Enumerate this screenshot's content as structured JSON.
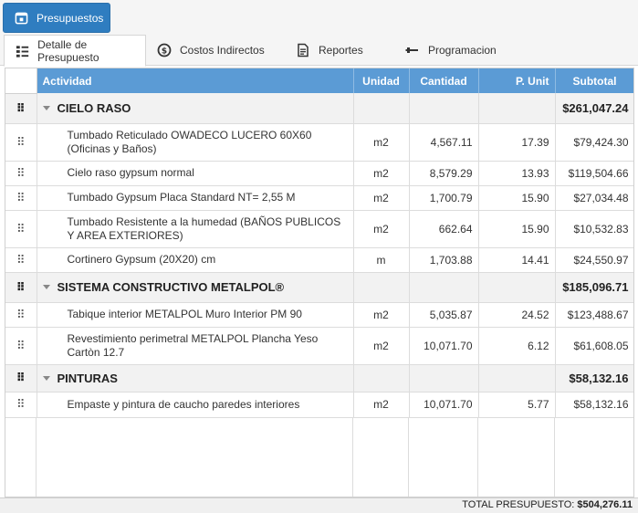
{
  "toolbar": {
    "primary_button_label": "Presupuestos",
    "primary_button_icon": "calendar-icon"
  },
  "tabs": [
    {
      "label": "Detalle de Presupuesto",
      "icon": "list-icon",
      "active": true
    },
    {
      "label": "Costos Indirectos",
      "icon": "dollar-circle-icon",
      "active": false
    },
    {
      "label": "Reportes",
      "icon": "document-icon",
      "active": false
    },
    {
      "label": "Programacion",
      "icon": "pin-icon",
      "active": false
    }
  ],
  "table": {
    "headers": {
      "actividad": "Actividad",
      "unidad": "Unidad",
      "cantidad": "Cantidad",
      "p_unit": "P. Unit",
      "subtotal": "Subtotal"
    },
    "groups": [
      {
        "name": "CIELO RASO",
        "subtotal": "$261,047.24",
        "rows": [
          {
            "actividad": "Tumbado Reticulado OWADECO LUCERO 60X60 (Oficinas y Baños)",
            "unidad": "m2",
            "cantidad": "4,567.11",
            "p_unit": "17.39",
            "subtotal": "$79,424.30"
          },
          {
            "actividad": "Cielo raso gypsum normal",
            "unidad": "m2",
            "cantidad": "8,579.29",
            "p_unit": "13.93",
            "subtotal": "$119,504.66"
          },
          {
            "actividad": "Tumbado Gypsum Placa Standard NT= 2,55 M",
            "unidad": "m2",
            "cantidad": "1,700.79",
            "p_unit": "15.90",
            "subtotal": "$27,034.48"
          },
          {
            "actividad": "Tumbado Resistente a la humedad (BAÑOS PUBLICOS Y AREA EXTERIORES)",
            "unidad": "m2",
            "cantidad": "662.64",
            "p_unit": "15.90",
            "subtotal": "$10,532.83"
          },
          {
            "actividad": "Cortinero Gypsum (20X20) cm",
            "unidad": "m",
            "cantidad": "1,703.88",
            "p_unit": "14.41",
            "subtotal": "$24,550.97"
          }
        ]
      },
      {
        "name": "SISTEMA CONSTRUCTIVO METALPOL®",
        "subtotal": "$185,096.71",
        "rows": [
          {
            "actividad": "Tabique interior METALPOL Muro Interior PM 90",
            "unidad": "m2",
            "cantidad": "5,035.87",
            "p_unit": "24.52",
            "subtotal": "$123,488.67"
          },
          {
            "actividad": "Revestimiento perimetral METALPOL Plancha Yeso Cartòn 12.7",
            "unidad": "m2",
            "cantidad": "10,071.70",
            "p_unit": "6.12",
            "subtotal": "$61,608.05"
          }
        ]
      },
      {
        "name": "PINTURAS",
        "subtotal": "$58,132.16",
        "rows": [
          {
            "actividad": "Empaste y pintura de caucho paredes interiores",
            "unidad": "m2",
            "cantidad": "10,071.70",
            "p_unit": "5.77",
            "subtotal": "$58,132.16"
          }
        ]
      }
    ]
  },
  "footer": {
    "total_label": "TOTAL PRESUPUESTO:",
    "total_value": "$504,276.11"
  },
  "colors": {
    "primary": "#2f7dc0",
    "header": "#5b9bd5",
    "group_bg": "#f2f2f2"
  }
}
